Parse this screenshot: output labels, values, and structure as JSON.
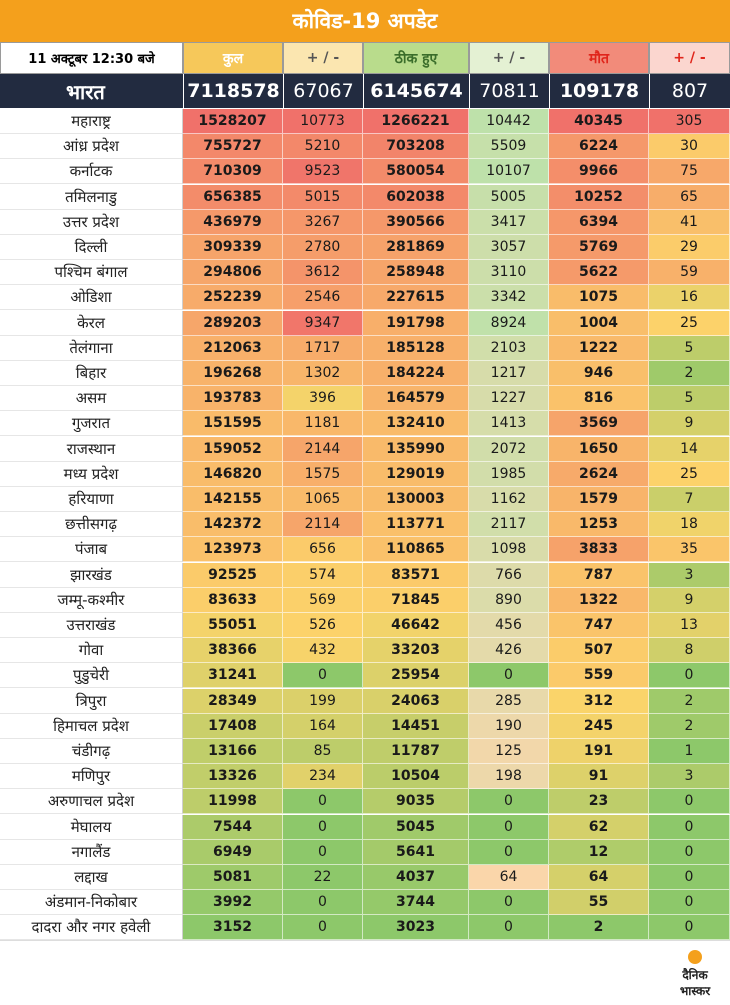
{
  "title": "कोविड-19 अपडेट",
  "header": {
    "date": "11 अक्टूबर 12:30 बजे",
    "total": "कुल",
    "total_change": "+ / -",
    "recovered": "ठीक हुए",
    "recovered_change": "+ / -",
    "deaths": "मौत",
    "deaths_change": "+ / -"
  },
  "national": {
    "name": "भारत",
    "total": "7118578",
    "total_change": "67067",
    "recovered": "6145674",
    "recovered_change": "70811",
    "deaths": "109178",
    "deaths_change": "807"
  },
  "rows": [
    [
      "महाराष्ट्र",
      "1528207",
      "10773",
      "1266221",
      "10442",
      "40345",
      "305"
    ],
    [
      "आंध्र प्रदेश",
      "755727",
      "5210",
      "703208",
      "5509",
      "6224",
      "30"
    ],
    [
      "कर्नाटक",
      "710309",
      "9523",
      "580054",
      "10107",
      "9966",
      "75"
    ],
    [
      "तमिलनाडु",
      "656385",
      "5015",
      "602038",
      "5005",
      "10252",
      "65"
    ],
    [
      "उत्तर प्रदेश",
      "436979",
      "3267",
      "390566",
      "3417",
      "6394",
      "41"
    ],
    [
      "दिल्ली",
      "309339",
      "2780",
      "281869",
      "3057",
      "5769",
      "29"
    ],
    [
      "पश्चिम बंगाल",
      "294806",
      "3612",
      "258948",
      "3110",
      "5622",
      "59"
    ],
    [
      "ओडिशा",
      "252239",
      "2546",
      "227615",
      "3342",
      "1075",
      "16"
    ],
    [
      "केरल",
      "289203",
      "9347",
      "191798",
      "8924",
      "1004",
      "25"
    ],
    [
      "तेलंगाना",
      "212063",
      "1717",
      "185128",
      "2103",
      "1222",
      "5"
    ],
    [
      "बिहार",
      "196268",
      "1302",
      "184224",
      "1217",
      "946",
      "2"
    ],
    [
      "असम",
      "193783",
      "396",
      "164579",
      "1227",
      "816",
      "5"
    ],
    [
      "गुजरात",
      "151595",
      "1181",
      "132410",
      "1413",
      "3569",
      "9"
    ],
    [
      "राजस्थान",
      "159052",
      "2144",
      "135990",
      "2072",
      "1650",
      "14"
    ],
    [
      "मध्य प्रदेश",
      "146820",
      "1575",
      "129019",
      "1985",
      "2624",
      "25"
    ],
    [
      "हरियाणा",
      "142155",
      "1065",
      "130003",
      "1162",
      "1579",
      "7"
    ],
    [
      "छत्तीसगढ़",
      "142372",
      "2114",
      "113771",
      "2117",
      "1253",
      "18"
    ],
    [
      "पंजाब",
      "123973",
      "656",
      "110865",
      "1098",
      "3833",
      "35"
    ],
    [
      "झारखंड",
      "92525",
      "574",
      "83571",
      "766",
      "787",
      "3"
    ],
    [
      "जम्मू-कश्मीर",
      "83633",
      "569",
      "71845",
      "890",
      "1322",
      "9"
    ],
    [
      "उत्तराखंड",
      "55051",
      "526",
      "46642",
      "456",
      "747",
      "13"
    ],
    [
      "गोवा",
      "38366",
      "432",
      "33203",
      "426",
      "507",
      "8"
    ],
    [
      "पुडुचेरी",
      "31241",
      "0",
      "25954",
      "0",
      "559",
      "0"
    ],
    [
      "त्रिपुरा",
      "28349",
      "199",
      "24063",
      "285",
      "312",
      "2"
    ],
    [
      "हिमाचल प्रदेश",
      "17408",
      "164",
      "14451",
      "190",
      "245",
      "2"
    ],
    [
      "चंडीगढ़",
      "13166",
      "85",
      "11787",
      "125",
      "191",
      "1"
    ],
    [
      "मणिपुर",
      "13326",
      "234",
      "10504",
      "198",
      "91",
      "3"
    ],
    [
      "अरुणाचल प्रदेश",
      "11998",
      "0",
      "9035",
      "0",
      "23",
      "0"
    ],
    [
      "मेघालय",
      "7544",
      "0",
      "5045",
      "0",
      "62",
      "0"
    ],
    [
      "नगालैंड",
      "6949",
      "0",
      "5641",
      "0",
      "12",
      "0"
    ],
    [
      "लद्दाख",
      "5081",
      "22",
      "4037",
      "64",
      "64",
      "0"
    ],
    [
      "अंडमान-निकोबार",
      "3992",
      "0",
      "3744",
      "0",
      "55",
      "0"
    ],
    [
      "दादरा और नगर हवेली",
      "3152",
      "0",
      "3023",
      "0",
      "2",
      "0"
    ]
  ],
  "colors": {
    "title_bg": "#f4a01c",
    "national_bg": "#222b40",
    "total_hdr": "#f6c85a",
    "recovered_hdr": "#b9dc8c",
    "deaths_hdr": "#f28b7a",
    "deaths_text": "#e0251b",
    "scale_high": "#f0716a",
    "scale_mid": "#fcd46a",
    "scale_low": "#8dc86a"
  },
  "logo": {
    "line1": "दैनिक",
    "line2": "भास्कर"
  }
}
